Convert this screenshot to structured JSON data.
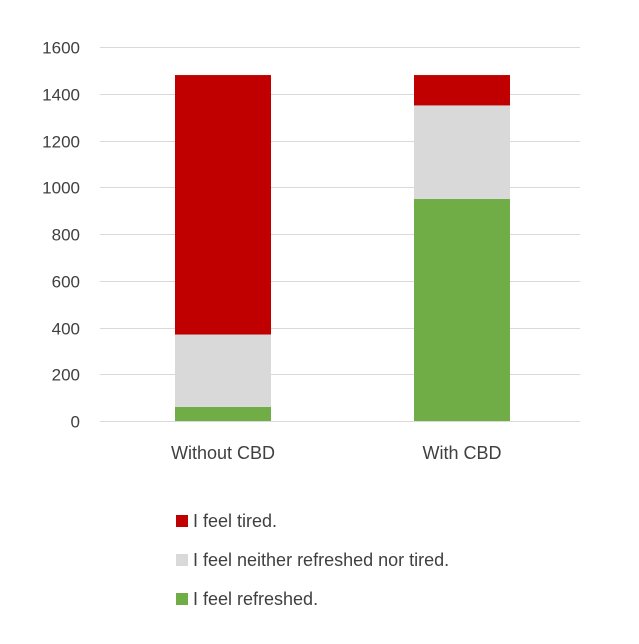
{
  "chart_data": {
    "type": "bar",
    "stacked": true,
    "categories": [
      "Without CBD",
      "With CBD"
    ],
    "series": [
      {
        "name": "I feel refreshed.",
        "values": [
          60,
          950
        ],
        "color": "#70ad47"
      },
      {
        "name": "I feel neither refreshed nor tired.",
        "values": [
          310,
          400
        ],
        "color": "#d9d9d9"
      },
      {
        "name": "I feel tired.",
        "values": [
          1110,
          130
        ],
        "color": "#c00000"
      }
    ],
    "legend_order": [
      "I feel tired.",
      "I feel neither refreshed nor tired.",
      "I feel refreshed."
    ],
    "yticks": [
      0,
      200,
      400,
      600,
      800,
      1000,
      1200,
      1400,
      1600
    ],
    "ylim": [
      0,
      1600
    ],
    "grid": true,
    "legend_position": "bottom",
    "gridline_color": "#d9d9d9",
    "text_color": "#404040"
  }
}
